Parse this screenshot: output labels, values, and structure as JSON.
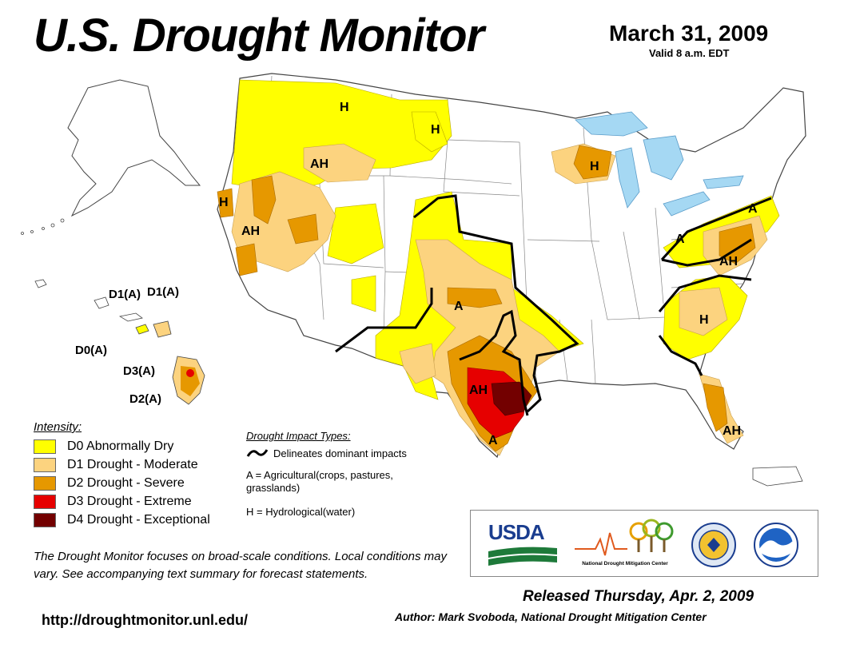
{
  "header": {
    "title": "U.S. Drought Monitor",
    "date": "March 31, 2009",
    "valid": "Valid 8 a.m. EDT"
  },
  "colors": {
    "d0": "#ffff00",
    "d1": "#fcd37f",
    "d2": "#e69800",
    "d3": "#e60000",
    "d4": "#730000",
    "water": "#a5d8f3",
    "state_line": "#555555"
  },
  "legend": {
    "title": "Intensity:",
    "items": [
      {
        "label": "D0 Abnormally Dry"
      },
      {
        "label": "D1 Drought - Moderate"
      },
      {
        "label": "D2 Drought - Severe"
      },
      {
        "label": "D3 Drought - Extreme"
      },
      {
        "label": "D4 Drought - Exceptional"
      }
    ]
  },
  "impact_types": {
    "title": "Drought Impact Types:",
    "delineates": "Delineates dominant impacts",
    "agricultural": "A = Agricultural(crops, pastures, grasslands)",
    "hydrological": "H = Hydrological(water)"
  },
  "map_labels": {
    "h_montana": "H",
    "h_north_dakota": "H",
    "h_wisconsin": "H",
    "ah_idaho": "AH",
    "h_coast": "H",
    "ah_nevada": "AH",
    "a_oklahoma": "A",
    "ah_texas": "AH",
    "a_south_texas": "A",
    "a_northeast": "A",
    "a_pennsylvania": "A",
    "ah_mid_atlantic": "AH",
    "h_carolinas": "H",
    "ah_florida": "AH"
  },
  "hawaii_labels": {
    "oahu": "D1(A)",
    "maui": "D1(A)",
    "molokai": "D0(A)",
    "big_island_north": "D3(A)",
    "big_island_south": "D2(A)"
  },
  "note": "The Drought Monitor focuses on broad-scale conditions. Local conditions may vary. See accompanying text summary for forecast statements.",
  "url": "http://droughtmonitor.unl.edu/",
  "logos": {
    "usda": "USDA",
    "ndmc": "National Drought Mitigation Center"
  },
  "released": "Released Thursday, Apr. 2, 2009",
  "author": "Author: Mark Svoboda, National Drought Mitigation Center"
}
